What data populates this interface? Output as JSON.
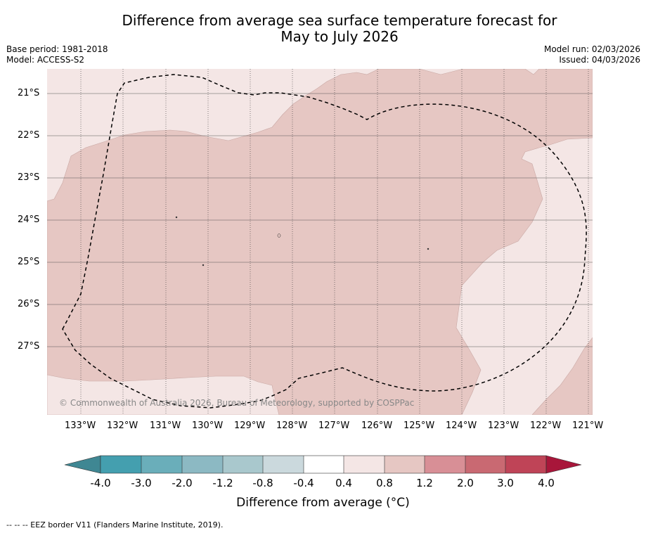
{
  "header": {
    "title_line1": "Difference from average sea surface temperature forecast for",
    "title_line2": "May to July 2026",
    "base_period": "Base period: 1981-2018",
    "model": "Model: ACCESS-S2",
    "model_run": "Model run: 02/03/2026",
    "issued": "Issued: 04/03/2026"
  },
  "map": {
    "lat_labels": [
      "21°S",
      "22°S",
      "23°S",
      "24°S",
      "25°S",
      "26°S",
      "27°S"
    ],
    "lon_labels": [
      "133°W",
      "132°W",
      "131°W",
      "130°W",
      "129°W",
      "128°W",
      "127°W",
      "126°W",
      "125°W",
      "124°W",
      "123°W",
      "122°W",
      "121°W"
    ],
    "copyright": "© Commonwealth of Australia 2026, Bureau of Meteorology, supported by COSPPac",
    "colors": {
      "band_04_08": "#f4e6e5",
      "band_08_12": "#e6c7c3",
      "border": "#000000"
    }
  },
  "colorbar": {
    "ticks": [
      "-4.0",
      "-3.0",
      "-2.0",
      "-1.2",
      "-0.8",
      "-0.4",
      "0.4",
      "0.8",
      "1.2",
      "2.0",
      "3.0",
      "4.0"
    ],
    "under_color": "#3f8793",
    "over_color": "#a8163a",
    "colors": [
      "#449faf",
      "#6aaeba",
      "#8cb9c3",
      "#a9c8cd",
      "#cbd9dd",
      "#ffffff",
      "#f4e6e5",
      "#e6c7c3",
      "#d88f96",
      "#c96972",
      "#bf4457"
    ],
    "label": "Difference from average (°C)"
  },
  "footnote": "--  --  -- EEZ border V11 (Flanders Marine Institute, 2019)."
}
